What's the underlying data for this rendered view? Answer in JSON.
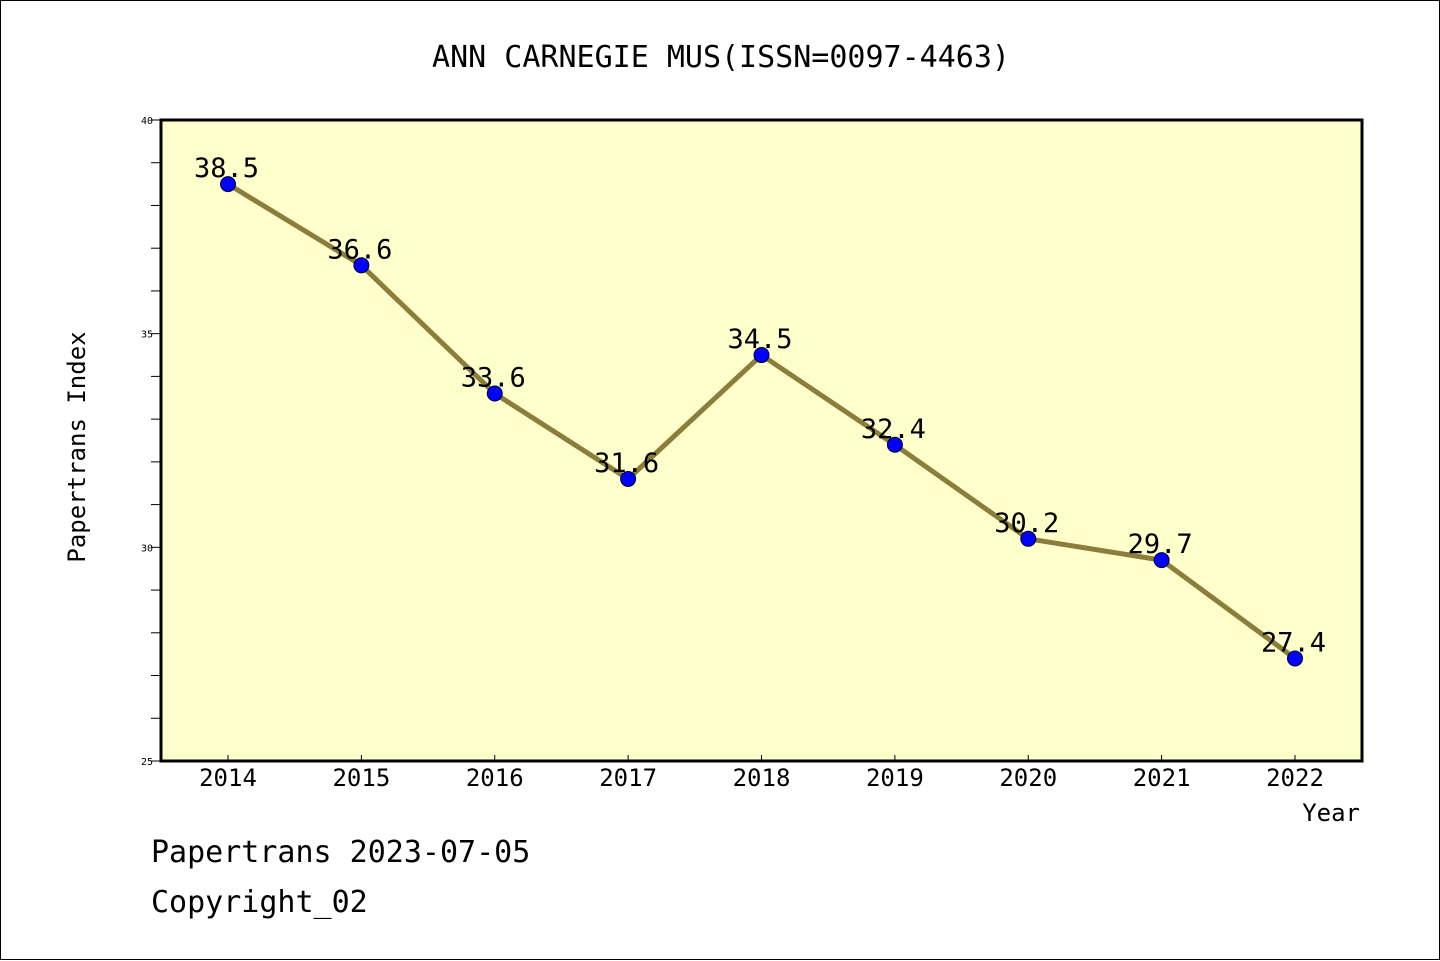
{
  "chart_data": {
    "type": "line",
    "title": "ANN CARNEGIE MUS(ISSN=0097-4463)",
    "xlabel": "Year",
    "ylabel": "Papertrans Index",
    "categories": [
      "2014",
      "2015",
      "2016",
      "2017",
      "2018",
      "2019",
      "2020",
      "2021",
      "2022"
    ],
    "values": [
      38.5,
      36.6,
      33.6,
      31.6,
      34.5,
      32.4,
      30.2,
      29.7,
      27.4
    ],
    "data_labels": [
      "38.5",
      "36.6",
      "33.6",
      "31.6",
      "34.5",
      "32.4",
      "30.2",
      "29.7",
      "27.4"
    ],
    "ylim": [
      25,
      40
    ],
    "yticks": [
      "25",
      "30",
      "35",
      "40"
    ],
    "grid": false,
    "colors": {
      "plot_background": "#ffffcc",
      "line": "#8b7d3a",
      "marker": "#0000ff"
    }
  },
  "footer": {
    "date_text": "Papertrans 2023-07-05",
    "copyright_text": "Copyright_02"
  }
}
